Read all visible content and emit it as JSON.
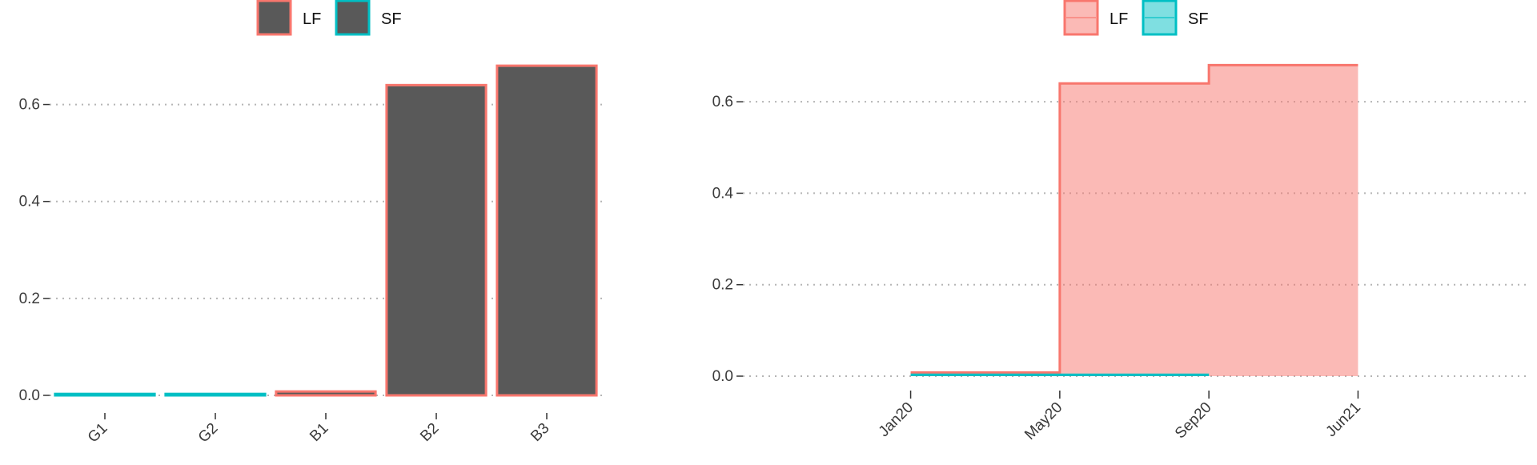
{
  "chart_data": [
    {
      "type": "bar",
      "title": "",
      "xlabel": "",
      "ylabel": "",
      "legend": {
        "position": "top-center",
        "entries": [
          {
            "name": "LF",
            "fill": "#595959",
            "outline": "#F8766D"
          },
          {
            "name": "SF",
            "fill": "#595959",
            "outline": "#00BFC4"
          }
        ]
      },
      "categories": [
        "G1",
        "G2",
        "B1",
        "B2",
        "B3"
      ],
      "values": [
        0.003,
        0.003,
        0.008,
        0.64,
        0.68
      ],
      "series_of_bar": [
        "SF",
        "SF",
        "LF",
        "LF",
        "LF"
      ],
      "ylim": [
        0,
        0.7
      ],
      "yticks": [
        0.0,
        0.2,
        0.4,
        0.6
      ],
      "ytick_labels": [
        "0.0",
        "0.2",
        "0.4",
        "0.6"
      ],
      "grid": "horizontal-dotted"
    },
    {
      "type": "area",
      "title": "",
      "xlabel": "",
      "ylabel": "",
      "legend": {
        "position": "top-center",
        "entries": [
          {
            "name": "LF",
            "fill": "#F8766D",
            "outline": "#F8766D"
          },
          {
            "name": "SF",
            "fill": "#00BFC4",
            "outline": "#00BFC4"
          }
        ]
      },
      "x_ticks": [
        0,
        4,
        8,
        12
      ],
      "x_tick_labels": [
        "Jan20",
        "May20",
        "Sep20",
        "Jun21"
      ],
      "xlim": [
        -4.5,
        16.5
      ],
      "ylim": [
        0,
        0.7
      ],
      "yticks": [
        0.0,
        0.2,
        0.4,
        0.6
      ],
      "ytick_labels": [
        "0.0",
        "0.2",
        "0.4",
        "0.6"
      ],
      "grid": "horizontal-dotted",
      "series": [
        {
          "name": "LF",
          "step": [
            {
              "x_start": 0,
              "x_end": 4,
              "y": 0.008
            },
            {
              "x_start": 4,
              "x_end": 8,
              "y": 0.64
            },
            {
              "x_start": 8,
              "x_end": 12,
              "y": 0.68
            }
          ]
        },
        {
          "name": "SF",
          "step": [
            {
              "x_start": 0,
              "x_end": 8,
              "y": 0.003
            }
          ]
        }
      ]
    }
  ]
}
